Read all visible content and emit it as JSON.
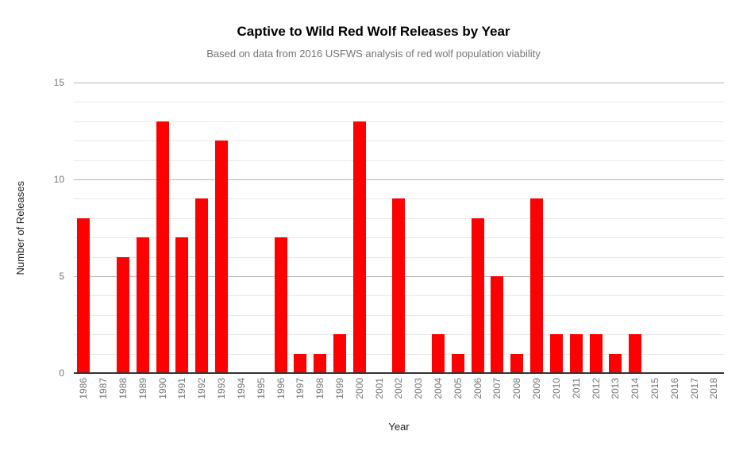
{
  "chart_data": {
    "type": "bar",
    "title": "Captive to Wild Red Wolf Releases by Year",
    "subtitle": "Based on data from 2016 USFWS analysis of red wolf population viability",
    "xlabel": "Year",
    "ylabel": "Number of Releases",
    "categories": [
      "1986",
      "1987",
      "1988",
      "1989",
      "1990",
      "1991",
      "1992",
      "1993",
      "1994",
      "1995",
      "1996",
      "1997",
      "1998",
      "1999",
      "2000",
      "2001",
      "2002",
      "2003",
      "2004",
      "2005",
      "2006",
      "2007",
      "2008",
      "2009",
      "2010",
      "2011",
      "2012",
      "2013",
      "2014",
      "2015",
      "2016",
      "2017",
      "2018"
    ],
    "values": [
      8,
      0,
      6,
      7,
      13,
      7,
      9,
      12,
      0,
      0,
      7,
      1,
      1,
      2,
      13,
      0,
      9,
      0,
      2,
      1,
      8,
      5,
      1,
      9,
      2,
      2,
      2,
      1,
      2,
      0,
      0,
      0,
      0
    ],
    "ylim": [
      0,
      15
    ],
    "yticks": [
      0,
      5,
      10,
      15
    ],
    "minor_grid_step": 1,
    "grid": true,
    "legend": "none",
    "colors": {
      "bar": "#ff0000",
      "title": "#000000",
      "subtitle": "#757575",
      "tick_label": "#757575",
      "axis_title": "#212121",
      "minor_gridline": "#e9e9e9",
      "major_gridline": "#b5b5b5",
      "baseline": "#333333"
    }
  }
}
